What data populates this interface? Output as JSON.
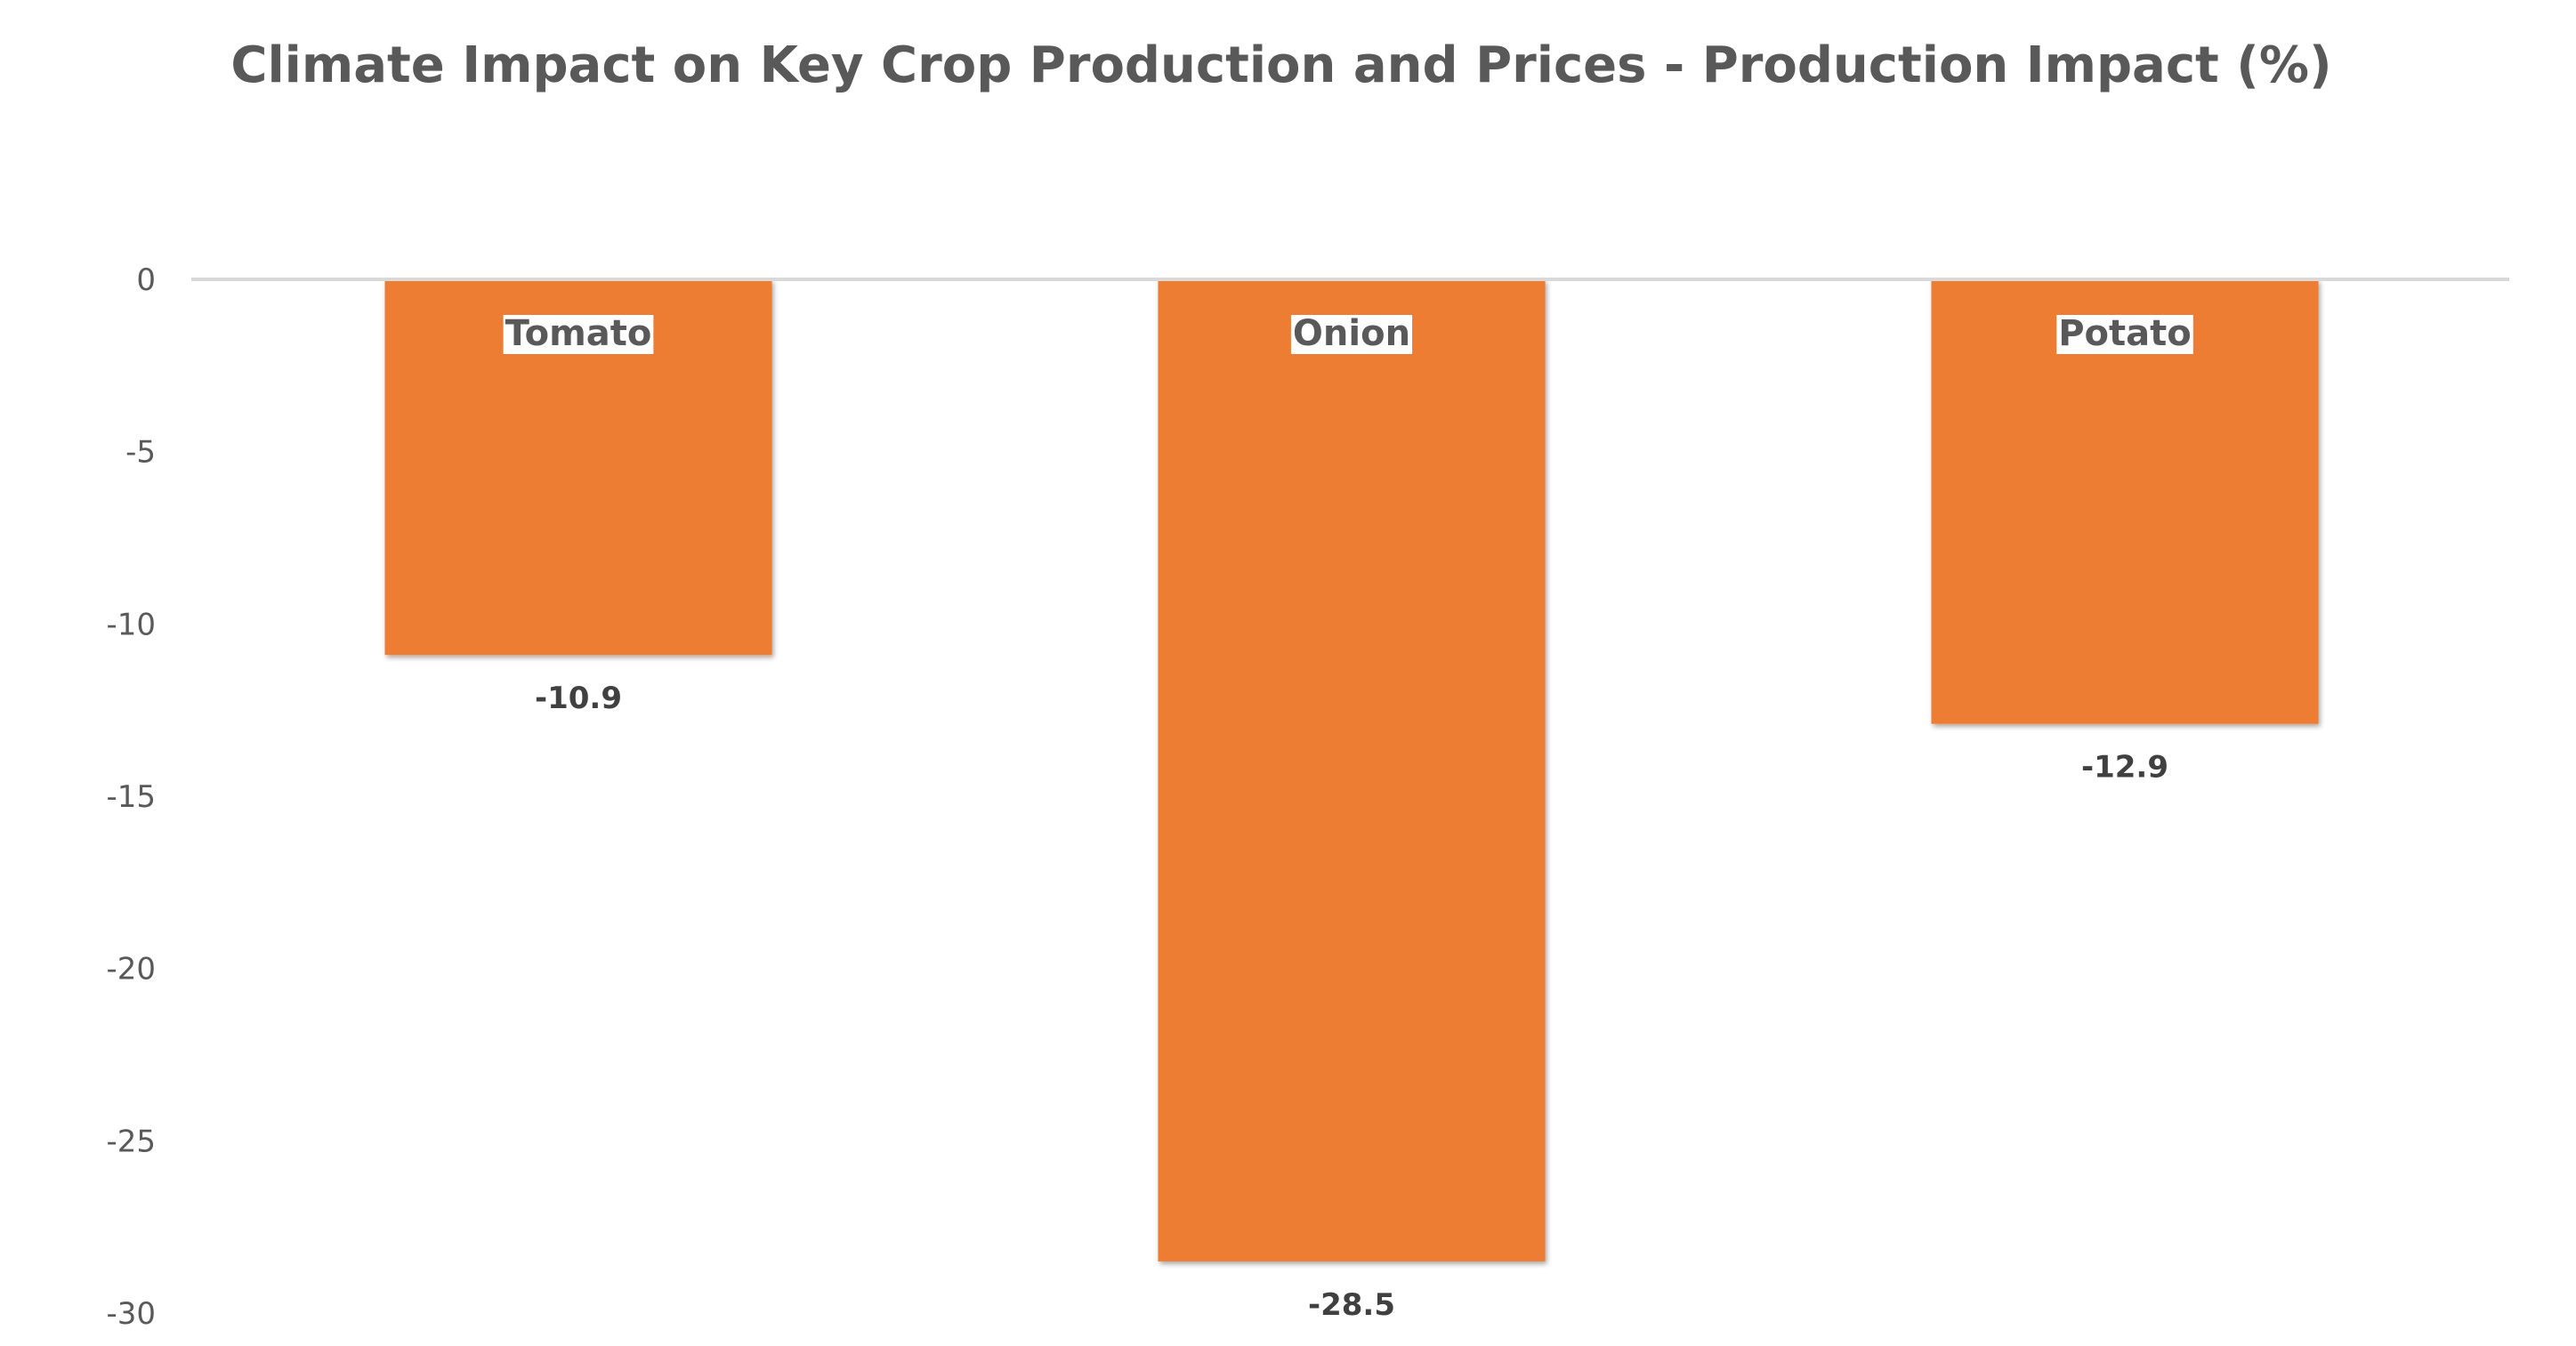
{
  "chart_data": {
    "type": "bar",
    "title": "Climate Impact on Key Crop Production and Prices - Production Impact (%)",
    "categories": [
      "Tomato",
      "Onion",
      "Potato"
    ],
    "series": [
      {
        "name": "Production Impact (%)",
        "values": [
          -10.9,
          -28.5,
          -12.9
        ],
        "value_labels": [
          "-10.9",
          "-28.5",
          "-12.9"
        ]
      }
    ],
    "xlabel": "",
    "ylabel": "",
    "ylim": [
      -30,
      0
    ],
    "yticks": [
      0,
      -5,
      -10,
      -15,
      -20,
      -25,
      -30
    ],
    "ytick_labels": [
      "0",
      "-5",
      "-10",
      "-15",
      "-20",
      "-25",
      "-30"
    ],
    "grid": false,
    "legend": "none",
    "category_label_position": "inside-top",
    "colors": {
      "bar": "#ED7D31",
      "zero_line": "#D9D9D9",
      "title": "#595959",
      "tick_text": "#595959",
      "value_text": "#404040",
      "category_label_bg": "#FFFFFF",
      "category_label_text": "#595959"
    }
  }
}
